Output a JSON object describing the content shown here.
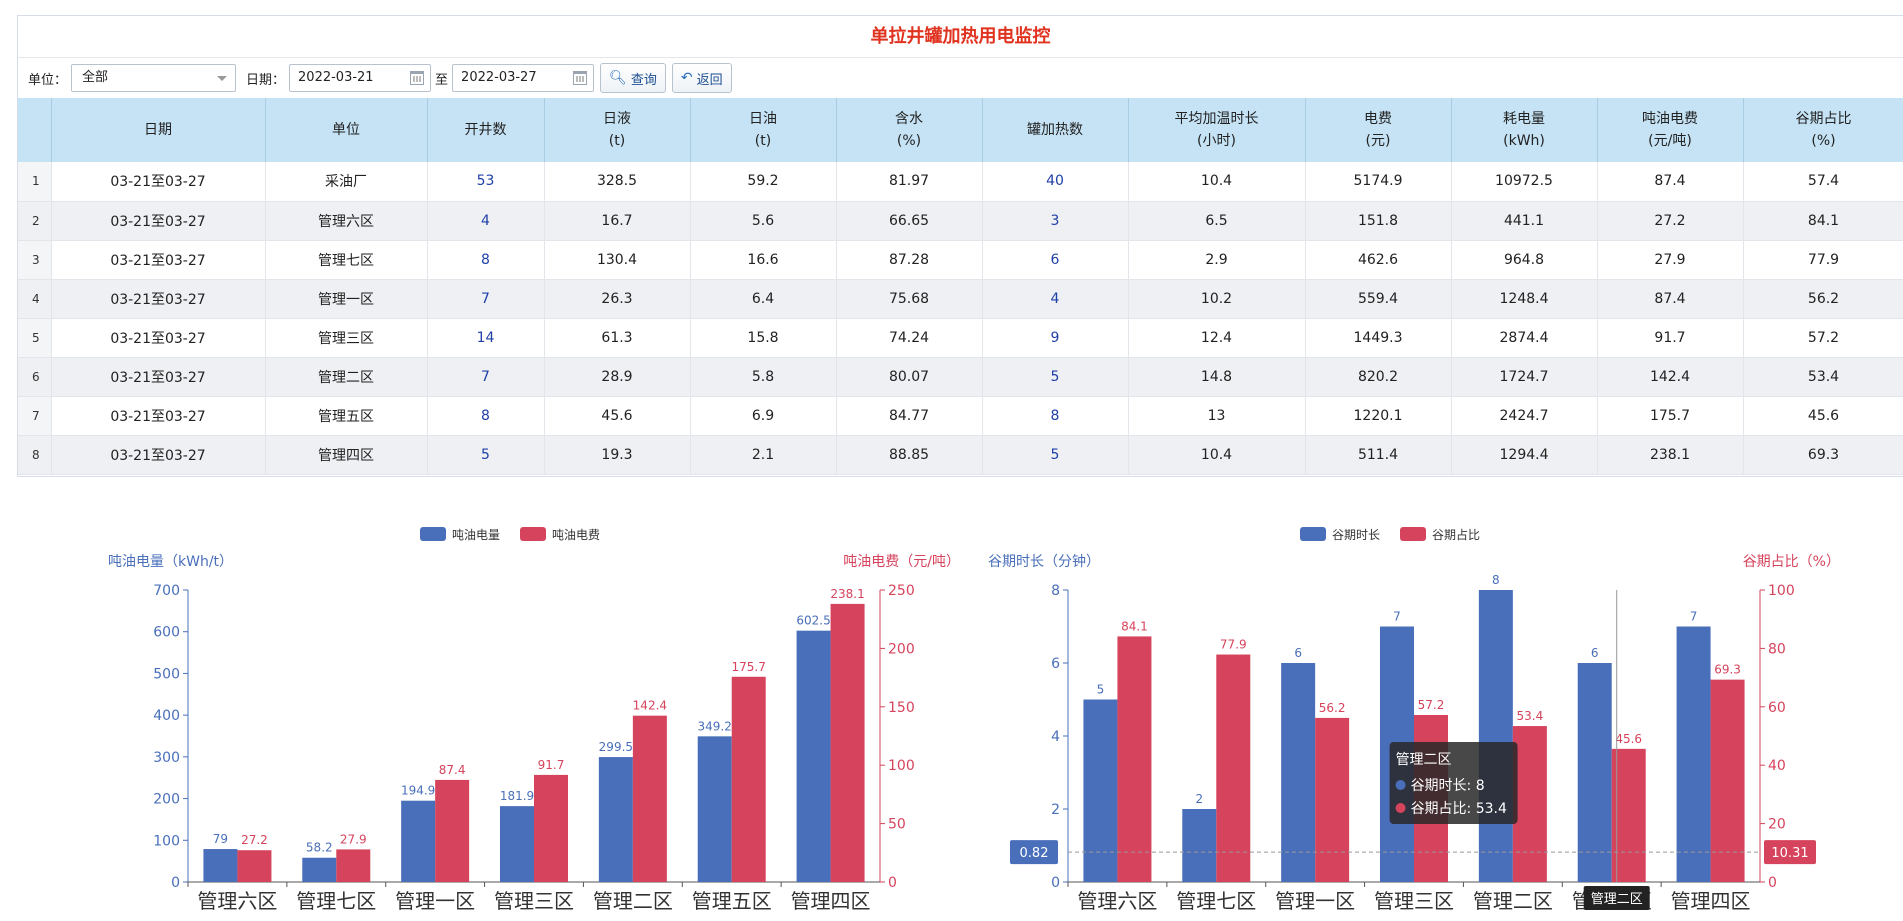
{
  "page": {
    "title": "单拉井罐加热用电监控"
  },
  "toolbar": {
    "unit_label": "单位：",
    "unit_value": "全部",
    "date_label": "日期：",
    "date_from": "2022-03-21",
    "sep_label": "至",
    "date_to": "2022-03-27",
    "query_label": "查询",
    "back_label": "返回"
  },
  "table": {
    "columns": [
      {
        "l1": "",
        "l2": ""
      },
      {
        "l1": "日期",
        "l2": ""
      },
      {
        "l1": "单位",
        "l2": ""
      },
      {
        "l1": "开井数",
        "l2": ""
      },
      {
        "l1": "日液",
        "l2": "(t)"
      },
      {
        "l1": "日油",
        "l2": "(t)"
      },
      {
        "l1": "含水",
        "l2": "(%)"
      },
      {
        "l1": "罐加热数",
        "l2": ""
      },
      {
        "l1": "平均加温时长",
        "l2": "(小时)"
      },
      {
        "l1": "电费",
        "l2": "(元)"
      },
      {
        "l1": "耗电量",
        "l2": "(kWh)"
      },
      {
        "l1": "吨油电费",
        "l2": "(元/吨)"
      },
      {
        "l1": "谷期占比",
        "l2": "(%)"
      }
    ],
    "rows": [
      [
        "1",
        "03-21至03-27",
        "采油厂",
        "53",
        "328.5",
        "59.2",
        "81.97",
        "40",
        "10.4",
        "5174.9",
        "10972.5",
        "87.4",
        "57.4"
      ],
      [
        "2",
        "03-21至03-27",
        "管理六区",
        "4",
        "16.7",
        "5.6",
        "66.65",
        "3",
        "6.5",
        "151.8",
        "441.1",
        "27.2",
        "84.1"
      ],
      [
        "3",
        "03-21至03-27",
        "管理七区",
        "8",
        "130.4",
        "16.6",
        "87.28",
        "6",
        "2.9",
        "462.6",
        "964.8",
        "27.9",
        "77.9"
      ],
      [
        "4",
        "03-21至03-27",
        "管理一区",
        "7",
        "26.3",
        "6.4",
        "75.68",
        "4",
        "10.2",
        "559.4",
        "1248.4",
        "87.4",
        "56.2"
      ],
      [
        "5",
        "03-21至03-27",
        "管理三区",
        "14",
        "61.3",
        "15.8",
        "74.24",
        "9",
        "12.4",
        "1449.3",
        "2874.4",
        "91.7",
        "57.2"
      ],
      [
        "6",
        "03-21至03-27",
        "管理二区",
        "7",
        "28.9",
        "5.8",
        "80.07",
        "5",
        "14.8",
        "820.2",
        "1724.7",
        "142.4",
        "53.4"
      ],
      [
        "7",
        "03-21至03-27",
        "管理五区",
        "8",
        "45.6",
        "6.9",
        "84.77",
        "8",
        "13",
        "1220.1",
        "2424.7",
        "175.7",
        "45.6"
      ],
      [
        "8",
        "03-21至03-27",
        "管理四区",
        "5",
        "19.3",
        "2.1",
        "88.85",
        "5",
        "10.4",
        "511.4",
        "1294.4",
        "238.1",
        "69.3"
      ]
    ]
  },
  "chart_data": [
    {
      "type": "bar",
      "categories": [
        "管理六区",
        "管理七区",
        "管理一区",
        "管理三区",
        "管理二区",
        "管理五区",
        "管理四区"
      ],
      "series": [
        {
          "name": "吨油电量",
          "values": [
            79,
            58.2,
            194.9,
            181.9,
            299.5,
            349.2,
            602.5
          ],
          "axis": "left",
          "color": "#4a6fba"
        },
        {
          "name": "吨油电费",
          "values": [
            27.2,
            27.9,
            87.4,
            91.7,
            142.4,
            175.7,
            238.1
          ],
          "axis": "right",
          "color": "#d6435c"
        }
      ],
      "ylabel_left": "吨油电量（kWh/t）",
      "ylabel_right": "吨油电费（元/吨）",
      "ylim_left": [
        0,
        700
      ],
      "ylim_right": [
        0,
        250
      ],
      "yticks_left": [
        0,
        100,
        200,
        300,
        400,
        500,
        600,
        700
      ],
      "yticks_right": [
        0,
        50,
        100,
        150,
        200,
        250
      ],
      "legend": "top-center"
    },
    {
      "type": "bar",
      "categories": [
        "管理六区",
        "管理七区",
        "管理一区",
        "管理三区",
        "管理二区",
        "管理五区",
        "管理四区"
      ],
      "series": [
        {
          "name": "谷期时长",
          "values": [
            5,
            2,
            6,
            7,
            8,
            6,
            7
          ],
          "axis": "left",
          "color": "#4a6fba"
        },
        {
          "name": "谷期占比",
          "values": [
            84.1,
            77.9,
            56.2,
            57.2,
            53.4,
            45.6,
            69.3
          ],
          "axis": "right",
          "color": "#d6435c"
        }
      ],
      "ylabel_left": "谷期时长（分钟）",
      "ylabel_right": "谷期占比（%）",
      "ylim_left": [
        0,
        8
      ],
      "ylim_right": [
        0,
        100
      ],
      "yticks_left": [
        0,
        2,
        4,
        6,
        8
      ],
      "yticks_right": [
        0,
        20,
        40,
        60,
        80,
        100
      ],
      "legend": "top-center",
      "tooltip": {
        "title": "管理二区",
        "line1": "谷期时长: 8",
        "line2": "谷期占比: 53.4"
      },
      "crosshair": {
        "left_value": "0.82",
        "right_value": "10.31",
        "category_label": "管理二区"
      }
    }
  ]
}
